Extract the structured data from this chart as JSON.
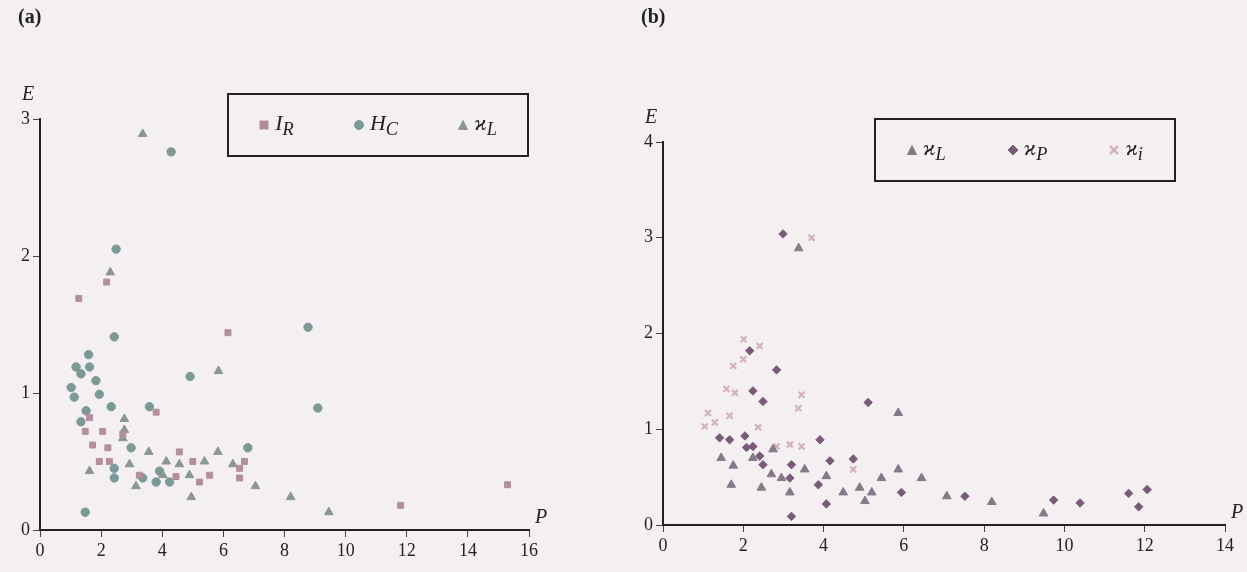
{
  "chart_data": [
    {
      "type": "scatter",
      "title": "(a)",
      "xlabel": "P",
      "ylabel": "E",
      "xlim": [
        0,
        16
      ],
      "xticks": [
        0,
        2,
        4,
        6,
        8,
        10,
        12,
        14,
        16
      ],
      "ylim": [
        0,
        3
      ],
      "yticks": [
        0,
        1,
        2,
        3
      ],
      "grid": false,
      "legend": "top right",
      "series": [
        {
          "name": "I$_{R}$",
          "color": "#b48e9c",
          "marker": "square",
          "x": [
            1.27,
            2.18,
            6.15,
            3.8,
            15.3,
            11.8,
            1.48,
            1.72,
            2.05,
            2.22,
            1.94,
            2.27,
            2.71,
            4.56,
            5.0,
            5.22,
            5.55,
            6.53,
            6.69,
            6.53,
            3.25,
            4.45,
            1.62
          ],
          "values": [
            1.69,
            1.81,
            1.44,
            0.86,
            0.33,
            0.18,
            0.72,
            0.62,
            0.72,
            0.6,
            0.5,
            0.5,
            0.7,
            0.57,
            0.5,
            0.35,
            0.4,
            0.38,
            0.5,
            0.45,
            0.4,
            0.39,
            0.82
          ]
        },
        {
          "name": "H$_{C}$",
          "color": "#7a9a98",
          "marker": "circle",
          "x": [
            4.29,
            2.49,
            2.43,
            1.59,
            4.91,
            8.77,
            9.09,
            6.8,
            1.48,
            1.02,
            1.12,
            1.18,
            1.34,
            1.62,
            1.83,
            2.33,
            1.94,
            1.51,
            1.34,
            3.58,
            3.8,
            3.91,
            4.24,
            2.43,
            2.43,
            2.98,
            3.36
          ],
          "values": [
            2.76,
            2.05,
            1.41,
            1.28,
            1.12,
            1.48,
            0.89,
            0.6,
            0.13,
            1.04,
            0.97,
            1.19,
            1.14,
            1.19,
            1.09,
            0.9,
            0.99,
            0.87,
            0.79,
            0.9,
            0.35,
            0.43,
            0.35,
            0.45,
            0.38,
            0.6,
            0.38
          ]
        },
        {
          "name": "ϰ$_{L}$",
          "color": "#8a9794",
          "marker": "triangle",
          "x": [
            3.36,
            2.3,
            5.84,
            2.76,
            2.76,
            1.62,
            2.93,
            3.56,
            4.13,
            4.56,
            4.89,
            4.95,
            5.38,
            5.82,
            6.31,
            7.05,
            8.2,
            9.45,
            3.14,
            4.02,
            2.71
          ],
          "values": [
            2.89,
            1.88,
            1.16,
            0.81,
            0.73,
            0.43,
            0.48,
            0.57,
            0.5,
            0.48,
            0.4,
            0.24,
            0.5,
            0.57,
            0.48,
            0.32,
            0.24,
            0.13,
            0.32,
            0.4,
            0.67
          ]
        }
      ]
    },
    {
      "type": "scatter",
      "title": "(b)",
      "xlabel": "P",
      "ylabel": "E",
      "xlim": [
        0,
        14
      ],
      "xticks": [
        0,
        2,
        4,
        6,
        8,
        10,
        12,
        14
      ],
      "ylim": [
        0,
        4
      ],
      "yticks": [
        0,
        1,
        2,
        3,
        4
      ],
      "grid": false,
      "legend": "top right",
      "series": [
        {
          "name": "ϰ$_{L}$",
          "color": "#857a8a",
          "marker": "triangle",
          "x": [
            3.38,
            5.86,
            5.86,
            1.7,
            1.75,
            1.45,
            2.24,
            2.45,
            2.7,
            2.95,
            3.16,
            3.53,
            4.07,
            4.49,
            4.9,
            5.03,
            5.2,
            5.44,
            2.74,
            6.44,
            7.07,
            8.19,
            9.48
          ],
          "values": [
            2.89,
            1.17,
            0.58,
            0.42,
            0.62,
            0.7,
            0.7,
            0.39,
            0.53,
            0.49,
            0.34,
            0.58,
            0.51,
            0.34,
            0.39,
            0.25,
            0.34,
            0.49,
            0.79,
            0.49,
            0.3,
            0.24,
            0.12
          ]
        },
        {
          "name": "ϰ$_{P}$",
          "color": "#7a5a78",
          "marker": "diamond",
          "x": [
            2.99,
            2.83,
            2.24,
            2.49,
            2.16,
            5.11,
            3.91,
            2.04,
            2.08,
            2.24,
            1.41,
            1.66,
            2.41,
            2.49,
            3.2,
            3.2,
            4.07,
            4.16,
            4.74,
            3.87,
            5.94,
            3.16,
            7.52,
            9.73,
            10.39,
            11.6,
            11.85,
            12.06
          ],
          "values": [
            3.04,
            1.62,
            1.4,
            1.29,
            1.82,
            1.28,
            0.89,
            0.93,
            0.81,
            0.82,
            0.91,
            0.89,
            0.72,
            0.63,
            0.63,
            0.09,
            0.22,
            0.67,
            0.69,
            0.42,
            0.34,
            0.49,
            0.3,
            0.26,
            0.23,
            0.33,
            0.19,
            0.37
          ]
        },
        {
          "name": "ϰ$_{i}$",
          "color": "#d6b0c0",
          "marker": "cross",
          "x": [
            3.7,
            2.01,
            2.41,
            1.75,
            2.0,
            1.58,
            1.79,
            3.45,
            3.37,
            1.12,
            1.29,
            1.66,
            2.37,
            2.83,
            3.16,
            3.45,
            4.74,
            1.04
          ],
          "values": [
            3.0,
            1.94,
            1.87,
            1.66,
            1.73,
            1.42,
            1.38,
            1.36,
            1.22,
            1.17,
            1.07,
            1.14,
            1.02,
            0.82,
            0.84,
            0.82,
            0.58,
            1.03
          ]
        }
      ]
    }
  ]
}
